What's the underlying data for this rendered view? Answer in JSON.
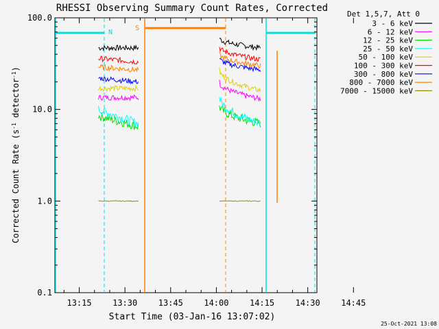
{
  "chart_data": {
    "type": "line",
    "title": "RHESSI Observing Summary Count Rates, Corrected",
    "xlabel": "Start Time (03-Jan-16 13:07:02)",
    "ylabel_main": "Corrected Count Rate (s",
    "ylabel_sup1": "-1",
    "ylabel_mid": " detector",
    "ylabel_sup2": "-1",
    "ylabel_end": ")",
    "ylog": true,
    "ylim": [
      0.1,
      100
    ],
    "xlim_min": [
      7,
      93
    ],
    "x_ticks": [
      {
        "label": "13:15",
        "m": 15
      },
      {
        "label": "13:30",
        "m": 30
      },
      {
        "label": "13:45",
        "m": 45
      },
      {
        "label": "14:00",
        "m": 60
      },
      {
        "label": "14:15",
        "m": 75
      },
      {
        "label": "14:30",
        "m": 90
      },
      {
        "label": "14:45",
        "m": 105
      }
    ],
    "y_ticks": [
      {
        "label": "100.0",
        "v": 100
      },
      {
        "label": "10.0",
        "v": 10
      },
      {
        "label": "1.0",
        "v": 1
      },
      {
        "label": "0.1",
        "v": 0.1
      }
    ],
    "legend_header": "Det 1,5,7, Att 0",
    "legend": [
      {
        "name": "3 - 6 keV",
        "color": "#000000"
      },
      {
        "name": "6 - 12 keV",
        "color": "#ff00ff"
      },
      {
        "name": "12 - 25 keV",
        "color": "#00e000"
      },
      {
        "name": "25 - 50 keV",
        "color": "#00ffff"
      },
      {
        "name": "50 - 100 keV",
        "color": "#e0d000"
      },
      {
        "name": "100 - 300 keV",
        "color": "#ff0000"
      },
      {
        "name": "300 - 800 keV",
        "color": "#0000ff"
      },
      {
        "name": "800 - 7000 keV",
        "color": "#ff8000"
      },
      {
        "name": "7000 - 15000 keV",
        "color": "#909000"
      }
    ],
    "series": [
      {
        "name": "3 - 6 keV",
        "color": "#000000",
        "points": [
          [
            21.3,
            47
          ],
          [
            34.4,
            47
          ],
          [
            61,
            60
          ],
          [
            74.5,
            47
          ]
        ]
      },
      {
        "name": "6 - 12 keV",
        "color": "#ff00ff",
        "points": [
          [
            21.3,
            13.5
          ],
          [
            34.4,
            13.5
          ],
          [
            61,
            20
          ],
          [
            74.5,
            13
          ]
        ]
      },
      {
        "name": "12 - 25 keV",
        "color": "#00e000",
        "points": [
          [
            21.3,
            8.5
          ],
          [
            34.4,
            6.5
          ],
          [
            61,
            11
          ],
          [
            74.5,
            7
          ]
        ]
      },
      {
        "name": "25 - 50 keV",
        "color": "#00ffff",
        "points": [
          [
            21.3,
            10
          ],
          [
            34.4,
            7
          ],
          [
            61,
            14
          ],
          [
            74.5,
            7
          ]
        ]
      },
      {
        "name": "50 - 100 keV",
        "color": "#e0d000",
        "points": [
          [
            21.3,
            17
          ],
          [
            34.4,
            17
          ],
          [
            61,
            27
          ],
          [
            74.5,
            16
          ]
        ]
      },
      {
        "name": "100 - 300 keV",
        "color": "#ff0000",
        "points": [
          [
            21.3,
            36
          ],
          [
            34.4,
            33
          ],
          [
            61,
            48
          ],
          [
            74.5,
            35
          ]
        ]
      },
      {
        "name": "300 - 800 keV",
        "color": "#0000ff",
        "points": [
          [
            21.3,
            22
          ],
          [
            34.4,
            20
          ],
          [
            61,
            36
          ],
          [
            74.5,
            27
          ]
        ]
      },
      {
        "name": "800 - 7000 keV",
        "color": "#ff8000",
        "points": [
          [
            21.3,
            29
          ],
          [
            34.4,
            27
          ],
          [
            61,
            40
          ],
          [
            74.5,
            30
          ]
        ]
      },
      {
        "name": "7000 - 15000 keV",
        "color": "#909000",
        "points": [
          [
            21.3,
            1.0
          ],
          [
            34.4,
            1.0
          ],
          [
            61,
            1.0
          ],
          [
            74.5,
            1.0
          ]
        ]
      }
    ],
    "flags": [
      {
        "label": "N",
        "color": "#00e0e0"
      },
      {
        "label": "S",
        "color": "#ff8000"
      }
    ],
    "grid": false,
    "legend_position": "top-right outside plot"
  },
  "footer": {
    "timestamp": "25-Oct-2021 13:08"
  }
}
